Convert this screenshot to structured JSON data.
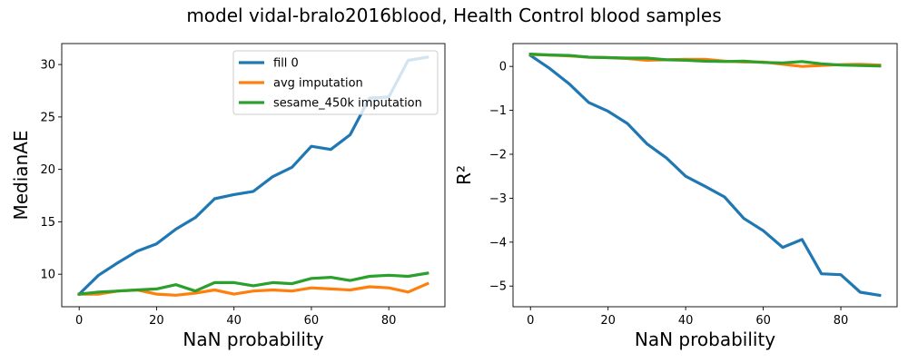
{
  "figure": {
    "suptitle": "model vidal-bralo2016blood, Health Control blood samples"
  },
  "chart_data": [
    {
      "type": "line",
      "xlabel": "NaN probability",
      "ylabel": "MedianAE",
      "xlim": [
        -4.5,
        94.5
      ],
      "ylim": [
        6.9,
        32.0
      ],
      "xticks": [
        0,
        20,
        40,
        60,
        80
      ],
      "yticks": [
        10,
        15,
        20,
        25,
        30
      ],
      "ytick_labels": [
        "10",
        "15",
        "20",
        "25",
        "30"
      ],
      "legend": "top-right",
      "x": [
        0,
        5,
        10,
        15,
        20,
        25,
        30,
        35,
        40,
        45,
        50,
        55,
        60,
        65,
        70,
        75,
        80,
        85,
        90
      ],
      "series": [
        {
          "name": "fill 0",
          "color": "#1f77b4",
          "values": [
            8.1,
            9.9,
            11.1,
            12.2,
            12.9,
            14.3,
            15.4,
            17.2,
            17.6,
            17.9,
            19.3,
            20.2,
            22.2,
            21.9,
            23.3,
            26.8,
            26.9,
            30.4,
            30.7
          ]
        },
        {
          "name": "avg imputation",
          "color": "#ff7f0e",
          "values": [
            8.1,
            8.1,
            8.4,
            8.5,
            8.1,
            8.0,
            8.2,
            8.5,
            8.1,
            8.4,
            8.5,
            8.4,
            8.7,
            8.6,
            8.5,
            8.8,
            8.7,
            8.3,
            9.1
          ]
        },
        {
          "name": "sesame_450k imputation",
          "color": "#2ca02c",
          "values": [
            8.1,
            8.3,
            8.4,
            8.5,
            8.6,
            9.0,
            8.4,
            9.2,
            9.2,
            8.9,
            9.2,
            9.1,
            9.6,
            9.7,
            9.4,
            9.8,
            9.9,
            9.8,
            10.1
          ]
        }
      ]
    },
    {
      "type": "line",
      "xlabel": "NaN probability",
      "ylabel": "R²",
      "xlim": [
        -4.5,
        94.5
      ],
      "ylim": [
        -5.47,
        0.52
      ],
      "xticks": [
        0,
        20,
        40,
        60,
        80
      ],
      "yticks": [
        0,
        -1,
        -2,
        -3,
        -4,
        -5
      ],
      "ytick_labels": [
        "0",
        "−1",
        "−2",
        "−3",
        "−4",
        "−5"
      ],
      "x": [
        0,
        5,
        10,
        15,
        20,
        25,
        30,
        35,
        40,
        45,
        50,
        55,
        60,
        65,
        70,
        75,
        80,
        85,
        90
      ],
      "series": [
        {
          "name": "fill 0",
          "color": "#1f77b4",
          "values": [
            0.25,
            -0.05,
            -0.4,
            -0.82,
            -1.02,
            -1.3,
            -1.76,
            -2.08,
            -2.5,
            -2.73,
            -2.97,
            -3.46,
            -3.74,
            -4.12,
            -3.94,
            -4.72,
            -4.74,
            -5.14,
            -5.21
          ]
        },
        {
          "name": "avg imputation",
          "color": "#ff7f0e",
          "values": [
            0.27,
            0.26,
            0.24,
            0.21,
            0.2,
            0.18,
            0.14,
            0.15,
            0.16,
            0.16,
            0.12,
            0.1,
            0.1,
            0.05,
            0.0,
            0.02,
            0.04,
            0.05,
            0.03
          ]
        },
        {
          "name": "sesame_450k imputation",
          "color": "#2ca02c",
          "values": [
            0.28,
            0.26,
            0.25,
            0.21,
            0.2,
            0.19,
            0.19,
            0.15,
            0.14,
            0.12,
            0.11,
            0.12,
            0.09,
            0.08,
            0.11,
            0.06,
            0.03,
            0.02,
            0.01
          ]
        }
      ]
    }
  ]
}
